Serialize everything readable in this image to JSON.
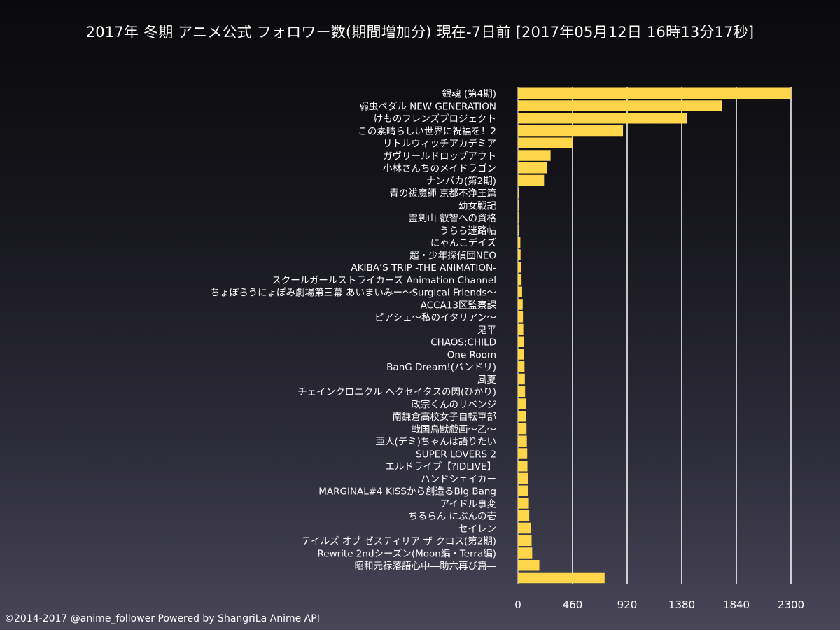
{
  "title": "2017年 冬期 アニメ公式 フォロワー数(期間増加分) 現在-7日前 [2017年05月12日 16時13分17秒]",
  "footer": "©2014-2017 @anime_follower Powered by ShangriLa Anime API",
  "colors": {
    "bar": "#ffd54a",
    "grid": "#ffffff",
    "text": "#ffffff"
  },
  "chart_data": {
    "type": "bar",
    "orientation": "horizontal",
    "title": "2017年 冬期 アニメ公式 フォロワー数(期間増加分) 現在-7日前 [2017年05月12日 16時13分17秒]",
    "xlabel": "",
    "ylabel": "",
    "xlim": [
      0,
      2300
    ],
    "xticks": [
      0,
      460,
      920,
      1380,
      1840,
      2300
    ],
    "grid": true,
    "categories": [
      "銀魂 (第4期)",
      "弱虫ペダル NEW GENERATION",
      "けものフレンズプロジェクト",
      "この素晴らしい世界に祝福を！2",
      "リトルウィッチアカデミア",
      "ガヴリールドロップアウト",
      "小林さんちのメイドラゴン",
      "ナンバカ(第2期)",
      "青の祓魔師 京都不浄王篇",
      "幼女戦記",
      "霊剣山 叡智への資格",
      "うらら迷路帖",
      "にゃんこデイズ",
      "超・少年探偵団NEO",
      "AKIBA’S TRIP -THE ANIMATION-",
      "スクールガールストライカーズ Animation Channel",
      "ちょぼらうにょぽみ劇場第三幕 あいまいみー～Surgical Friends～",
      "ACCA13区監察課",
      "ピアシェ～私のイタリアン～",
      "鬼平",
      "CHAOS;CHILD",
      "One Room",
      "BanG Dream!(バンドリ)",
      "風夏",
      "チェインクロニクル ヘクセイタスの閃(ひかり)",
      "政宗くんのリベンジ",
      "南鎌倉高校女子自転車部",
      "戦国鳥獣戯画～乙～",
      "亜人(デミ)ちゃんは語りたい",
      "SUPER LOVERS 2",
      "エルドライブ【?lDLIVE】",
      "ハンドシェイカー",
      "MARGINAL#4 KISSから創造るBig Bang",
      "アイドル事変",
      "ちるらん にぶんの壱",
      "セイレン",
      "テイルズ オブ ゼスティリア ザ クロス(第2期)",
      "Rewrite 2ndシーズン(Moon編・Terra編)",
      "昭和元禄落語心中―助六再び篇―",
      ""
    ],
    "values": [
      2300,
      1720,
      1425,
      885,
      460,
      275,
      245,
      220,
      3,
      5,
      10,
      12,
      20,
      22,
      25,
      30,
      35,
      40,
      42,
      45,
      48,
      50,
      55,
      58,
      60,
      65,
      70,
      72,
      75,
      78,
      80,
      85,
      88,
      92,
      95,
      110,
      115,
      120,
      180,
      730
    ]
  }
}
